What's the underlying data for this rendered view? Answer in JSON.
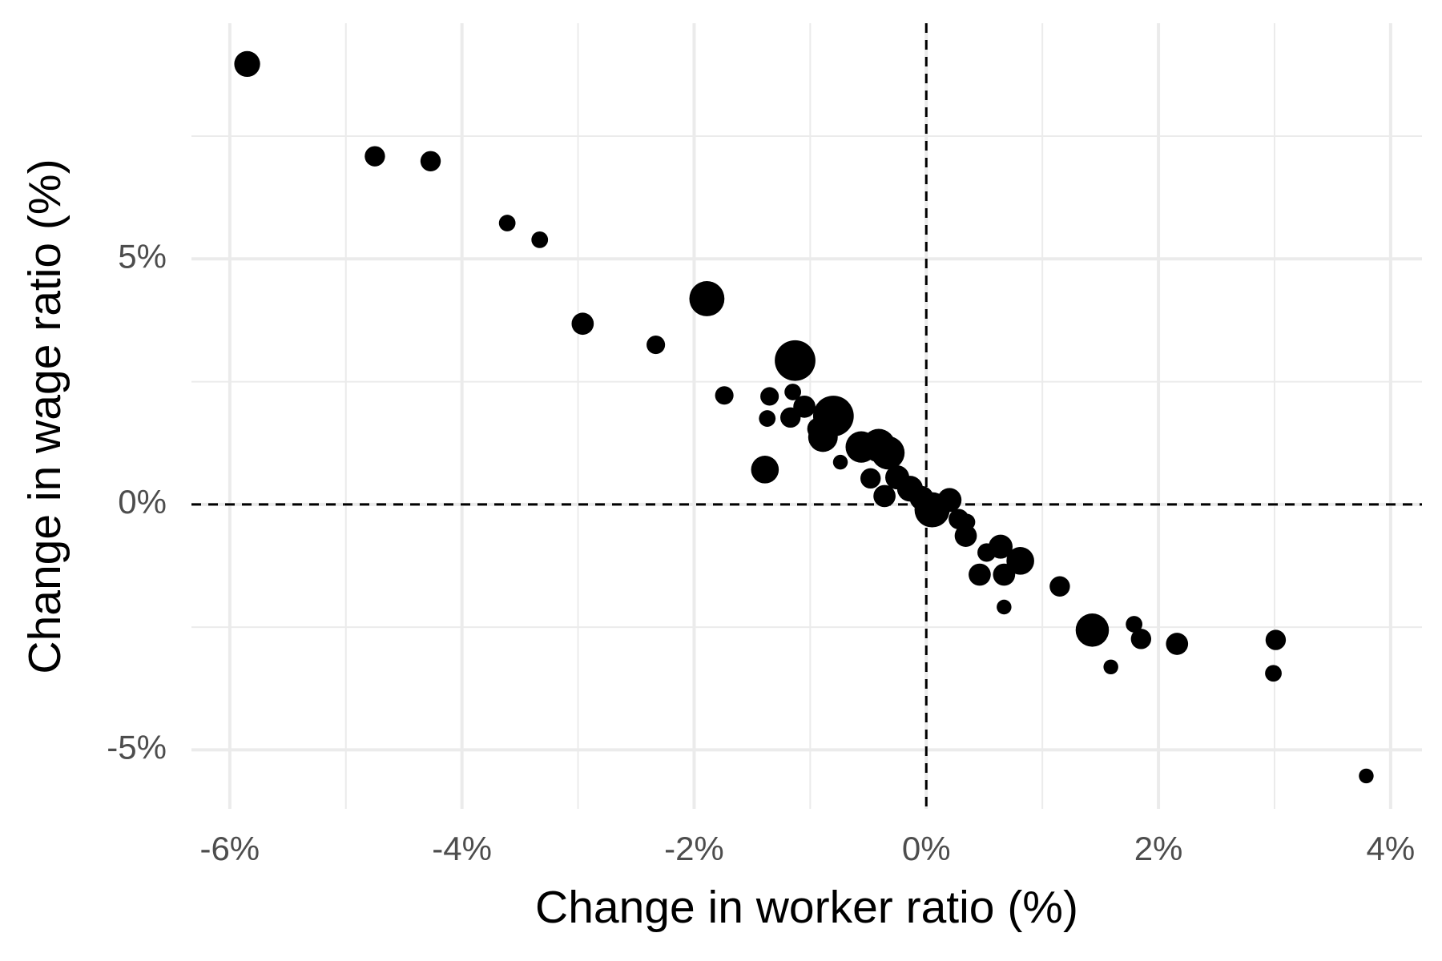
{
  "chart_data": {
    "type": "scatter",
    "x_label": "Change in worker ratio (%)",
    "y_label": "Change in wage ratio (%)",
    "x": [
      -5.85,
      -4.75,
      -4.27,
      -3.61,
      -3.33,
      -2.96,
      -2.33,
      -1.89,
      -1.74,
      -1.13,
      -1.35,
      -1.15,
      -1.37,
      -1.17,
      -1.05,
      -0.8,
      -0.89,
      -0.93,
      -1.39,
      -0.74,
      -0.56,
      -0.41,
      -0.33,
      -0.48,
      -0.36,
      -0.25,
      -0.14,
      -0.04,
      0.05,
      0.2,
      0.28,
      0.34,
      0.35,
      0.52,
      0.64,
      0.81,
      0.46,
      0.67,
      0.67,
      1.15,
      1.43,
      1.79,
      1.85,
      1.59,
      2.16,
      3.01,
      2.99,
      3.79
    ],
    "values": [
      8.97,
      7.09,
      6.99,
      5.73,
      5.39,
      3.68,
      3.25,
      4.19,
      2.22,
      2.93,
      2.2,
      2.29,
      1.75,
      1.77,
      1.99,
      1.8,
      1.37,
      1.54,
      0.71,
      0.86,
      1.17,
      1.2,
      1.05,
      0.53,
      0.17,
      0.55,
      0.32,
      0.13,
      -0.11,
      0.09,
      -0.3,
      -0.64,
      -0.36,
      -0.98,
      -0.86,
      -1.15,
      -1.43,
      -1.43,
      -2.09,
      -1.67,
      -2.56,
      -2.44,
      -2.74,
      -3.31,
      -2.84,
      -2.76,
      -3.44,
      -5.53
    ],
    "sizes": [
      14,
      11,
      11,
      9,
      9,
      12,
      10,
      19,
      10,
      22,
      10,
      9,
      9,
      11,
      12,
      22,
      16,
      12,
      15,
      8,
      17,
      18,
      18,
      11,
      12,
      13,
      14,
      13,
      19,
      13,
      11,
      12,
      9,
      10,
      13,
      15,
      12,
      12,
      8,
      11,
      18,
      9,
      11,
      8,
      12,
      11,
      9,
      8
    ],
    "color": "#000000",
    "xlim": [
      -6.33,
      4.27
    ],
    "ylim": [
      -6.2,
      9.8
    ],
    "xticks": [
      {
        "value": -6,
        "label": "-6%"
      },
      {
        "value": -4,
        "label": "-4%"
      },
      {
        "value": -2,
        "label": "-2%"
      },
      {
        "value": 0,
        "label": "0%"
      },
      {
        "value": 2,
        "label": "2%"
      },
      {
        "value": 4,
        "label": "4%"
      }
    ],
    "yticks": [
      {
        "value": -5,
        "label": "-5%"
      },
      {
        "value": 0,
        "label": "0%"
      },
      {
        "value": 5,
        "label": "5%"
      }
    ],
    "x_minor_ticks": [
      -5,
      -3,
      -1,
      1,
      3
    ],
    "y_minor_ticks": [
      -2.5,
      2.5,
      7.5
    ],
    "reference_lines": {
      "x": 0,
      "y": 0
    },
    "grid": true
  }
}
